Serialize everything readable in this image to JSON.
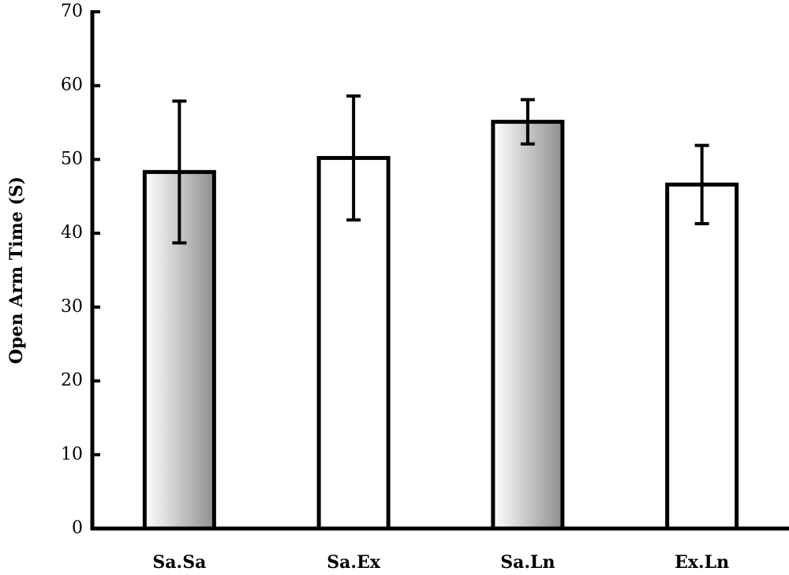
{
  "chart_data": {
    "type": "bar",
    "y_label": "Open Arm Time (S)",
    "categories": [
      "Sa.Sa",
      "Sa.Ex",
      "Sa.Ln",
      "Ex.Ln"
    ],
    "values": [
      48.3,
      50.2,
      55.1,
      46.6
    ],
    "errors": [
      9.6,
      8.4,
      3.0,
      5.3
    ],
    "colors": [
      "#8f8f8f",
      "#ffffff",
      "#8f8f8f",
      "#ffffff"
    ],
    "ylim": [
      0,
      70
    ],
    "yticks": [
      0,
      10,
      20,
      30,
      40,
      50,
      60,
      70
    ],
    "grid": false
  }
}
